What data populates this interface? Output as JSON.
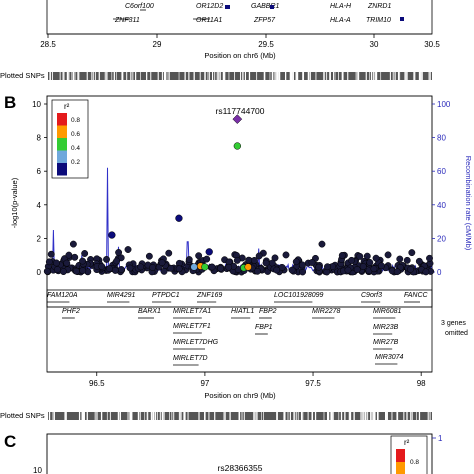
{
  "panel_a": {
    "genes_row1": [
      "C6orf100",
      "OR12D2",
      "GABBR1",
      "HLA-H",
      "ZNRD1"
    ],
    "genes_row2": [
      "ZNF311",
      "OR11A1",
      "ZFP57",
      "HLA-A",
      "TRIM10"
    ],
    "x_ticks": [
      "28.5",
      "29",
      "29.5",
      "30",
      "30.5"
    ],
    "xlabel": "Position on chr6 (Mb)",
    "plotted_snps_label": "Plotted SNPs"
  },
  "panel_b": {
    "panel_label": "B",
    "genes_omitted_note": "3 genes\nomitted",
    "plotted_snps_label": "Plotted SNPs",
    "chart_data": {
      "type": "scatter",
      "title": "",
      "xlabel": "Position on chr9 (Mb)",
      "ylabel": "-log10(p-value)",
      "y2label": "Recombination rate (cM/Mb)",
      "xlim": [
        96.27,
        98.05
      ],
      "ylim": [
        0,
        10
      ],
      "y2lim": [
        0,
        100
      ],
      "x_ticks": [
        96.5,
        97,
        97.5,
        98
      ],
      "y_ticks": [
        0,
        2,
        4,
        6,
        8,
        10
      ],
      "y2_ticks": [
        0,
        20,
        40,
        60,
        80,
        100
      ],
      "lead_snp": {
        "name": "rs117744700",
        "x": 97.15,
        "y": 9.1,
        "color": "#7a2fa8"
      },
      "legend": {
        "title": "r²",
        "placement": "top-left",
        "labels": [
          "0.8",
          "0.6",
          "0.4",
          "0.2"
        ],
        "colors": [
          "#e41a1c",
          "#ff9900",
          "#33cc33",
          "#6fa8dc",
          "#0b0b7a"
        ]
      },
      "notable_points": [
        {
          "x": 97.15,
          "y": 7.5,
          "r2_color": "#33cc33"
        },
        {
          "x": 96.88,
          "y": 3.2,
          "r2_color": "#0b0b7a"
        },
        {
          "x": 96.57,
          "y": 2.2,
          "r2_color": "#0b0b7a"
        },
        {
          "x": 97.02,
          "y": 1.2,
          "r2_color": "#0b0b7a"
        },
        {
          "x": 96.95,
          "y": 0.3,
          "r2_color": "#6fa8dc"
        },
        {
          "x": 96.98,
          "y": 0.35,
          "r2_color": "#ff9900"
        },
        {
          "x": 97.0,
          "y": 0.3,
          "r2_color": "#33cc33"
        },
        {
          "x": 97.18,
          "y": 0.25,
          "r2_color": "#33cc33"
        },
        {
          "x": 97.2,
          "y": 0.3,
          "r2_color": "#ff9900"
        }
      ],
      "recombination_peaks": [
        {
          "x": 96.55,
          "rate": 62
        },
        {
          "x": 96.3,
          "rate": 25
        },
        {
          "x": 96.92,
          "rate": 18
        },
        {
          "x": 96.6,
          "rate": 15
        },
        {
          "x": 97.25,
          "rate": 14
        },
        {
          "x": 96.43,
          "rate": 10
        }
      ],
      "genes": [
        "FAM120A",
        "MIR4291",
        "PTPDC1",
        "ZNF169",
        "LOC101928099",
        "C9orf3",
        "FANCC",
        "PHF2",
        "BARX1",
        "MIRLET7A1",
        "HIATL1",
        "FBP2",
        "MIR2278",
        "MIR6081",
        "MIRLET7F1",
        "FBP1",
        "MIR23B",
        "MIRLET7DHG",
        "MIR27B",
        "MIRLET7D",
        "MIR3074"
      ]
    }
  },
  "panel_c": {
    "panel_label": "C",
    "lead_snp": "rs28366355",
    "y_tick_top": "10",
    "legend_title": "r²",
    "legend_label": "0.8",
    "legend_colors": [
      "#e41a1c",
      "#ff9900"
    ]
  }
}
